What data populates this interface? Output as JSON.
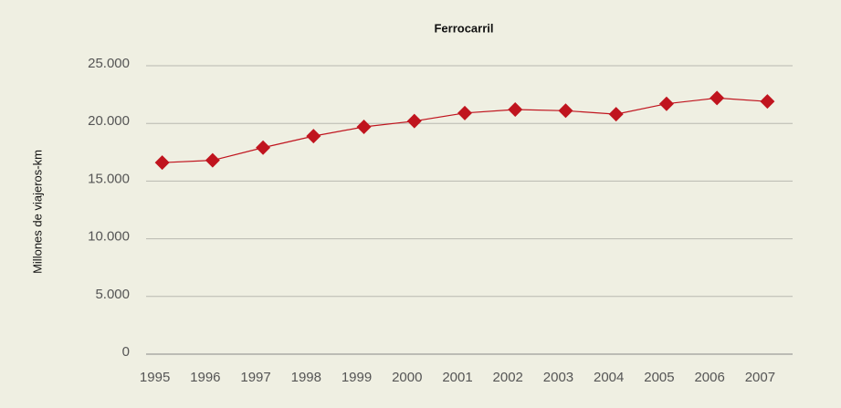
{
  "chart_data": {
    "type": "line",
    "title": "Ferrocarril",
    "y_label": "Millones de viajeros-km",
    "categories": [
      "1995",
      "1996",
      "1997",
      "1998",
      "1999",
      "2000",
      "2001",
      "2002",
      "2003",
      "2004",
      "2005",
      "2006",
      "2007"
    ],
    "values": [
      16600,
      16800,
      17900,
      18900,
      19700,
      20200,
      20900,
      21200,
      21100,
      20800,
      21700,
      22200,
      21900
    ],
    "color": "#c0141e",
    "ylim": [
      0,
      25000
    ],
    "yticks": [
      0,
      {
        "value": 5000,
        "label": "5.000"
      },
      {
        "value": 10000,
        "label": "10.000"
      },
      {
        "value": 15000,
        "label": "15.000"
      },
      {
        "value": 20000,
        "label": "20.000"
      },
      {
        "value": 25000,
        "label": "25.000"
      }
    ],
    "grid": true
  }
}
